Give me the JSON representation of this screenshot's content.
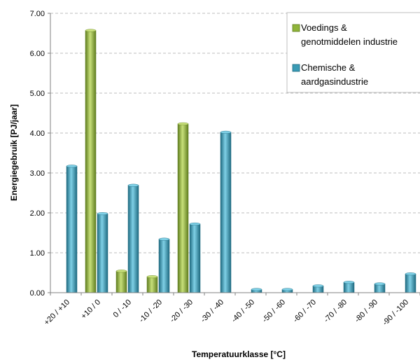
{
  "chart_data": {
    "type": "bar",
    "title": "",
    "xlabel": "Temperatuurklasse [°C]",
    "ylabel": "Energiegebruik [PJ/jaar]",
    "ylim": [
      0,
      7
    ],
    "yticks": [
      "0.00",
      "1.00",
      "2.00",
      "3.00",
      "4.00",
      "5.00",
      "6.00",
      "7.00"
    ],
    "grid": "horizontal dashed",
    "legend_position": "top-right",
    "categories": [
      "+20 / +10",
      "+10 / 0",
      "0 / -10",
      "-10 / -20",
      "-20 / -30",
      "-30 / -40",
      "-40 / -50",
      "-50 / -60",
      "-60 / -70",
      "-70 / -80",
      "-80 / -90",
      "-90 / -100"
    ],
    "series": [
      {
        "name": "Voedings & genotmiddelen industrie",
        "legend_lines": [
          "Voedings &",
          "genotmiddelen industrie"
        ],
        "color": "#8fb43a",
        "color_dark": "#5f7d1f",
        "color_light": "#c8e07a",
        "values": [
          0,
          6.57,
          0.54,
          0.4,
          4.23,
          0,
          0,
          0,
          0,
          0,
          0,
          0
        ]
      },
      {
        "name": "Chemische & aardgasindustrie",
        "legend_lines": [
          "Chemische &",
          "aardgasindustrie"
        ],
        "color": "#3a9bb5",
        "color_dark": "#1f6a80",
        "color_light": "#7fd0e6",
        "values": [
          3.17,
          1.98,
          2.69,
          1.34,
          1.72,
          4.02,
          0.08,
          0.08,
          0.17,
          0.26,
          0.22,
          0.47
        ]
      }
    ]
  }
}
